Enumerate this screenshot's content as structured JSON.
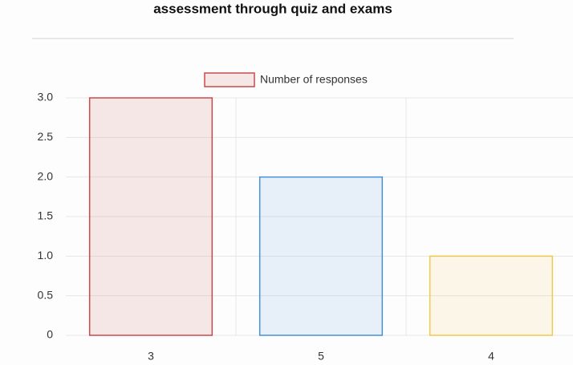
{
  "chart_data": {
    "type": "bar",
    "title": "assessment through quiz and exams",
    "categories": [
      "3",
      "5",
      "4"
    ],
    "series": [
      {
        "name": "Number of responses",
        "colors": [
          "#c94a4a",
          "#4a90d9",
          "#f2c94c"
        ],
        "values": [
          3,
          2,
          1
        ]
      }
    ],
    "ylim": [
      0,
      3
    ],
    "yticks": [
      0,
      0.5,
      {
        "value": 1,
        "label": "1.0"
      },
      1.5,
      {
        "value": 2,
        "label": "2.0"
      },
      2.5,
      {
        "value": 3,
        "label": "3.0"
      }
    ],
    "grid": true,
    "legend": "top"
  }
}
